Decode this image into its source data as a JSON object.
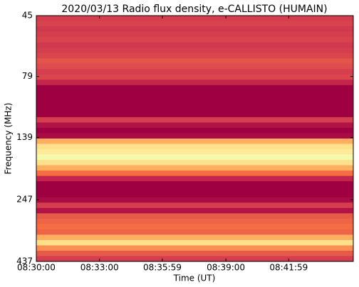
{
  "chart_data": {
    "type": "heatmap",
    "title": "2020/03/13  Radio flux density, e-CALLISTO (HUMAIN)",
    "x_label": "Time (UT)",
    "y_label": "Frequency (MHz)",
    "xlim": [
      0,
      903
    ],
    "xticks": [
      {
        "value": 0,
        "label": "08:30:00"
      },
      {
        "value": 180,
        "label": "08:33:00"
      },
      {
        "value": 359,
        "label": "08:35:59"
      },
      {
        "value": 540,
        "label": "08:39:00"
      },
      {
        "value": 719,
        "label": "08:41:59"
      }
    ],
    "ylim": [
      45,
      437
    ],
    "y_log": true,
    "y_inverted": true,
    "yticks": [
      45,
      79,
      139,
      247,
      437
    ],
    "zlim": [
      0,
      10
    ],
    "colorscale": [
      "#9e0142",
      "#c3254c",
      "#d53e4f",
      "#e65a4a",
      "#f46d43",
      "#fdae61",
      "#fee08b",
      "#fff3a6",
      "#ffffbf",
      "#e6f598",
      "#abdda4"
    ],
    "z": [
      2,
      2.2,
      1.8,
      2,
      2.2,
      1.8,
      2,
      2.3,
      2.8,
      2.5,
      2,
      2.3,
      1,
      0,
      0,
      0,
      0,
      0,
      0,
      2,
      0.5,
      0,
      0.3,
      5,
      6,
      6.5,
      8.5,
      6,
      5,
      4,
      1,
      0,
      0,
      0,
      0.3,
      2,
      0.5,
      3,
      3.5,
      4,
      3.5,
      5,
      6,
      4.5,
      3,
      2
    ]
  }
}
